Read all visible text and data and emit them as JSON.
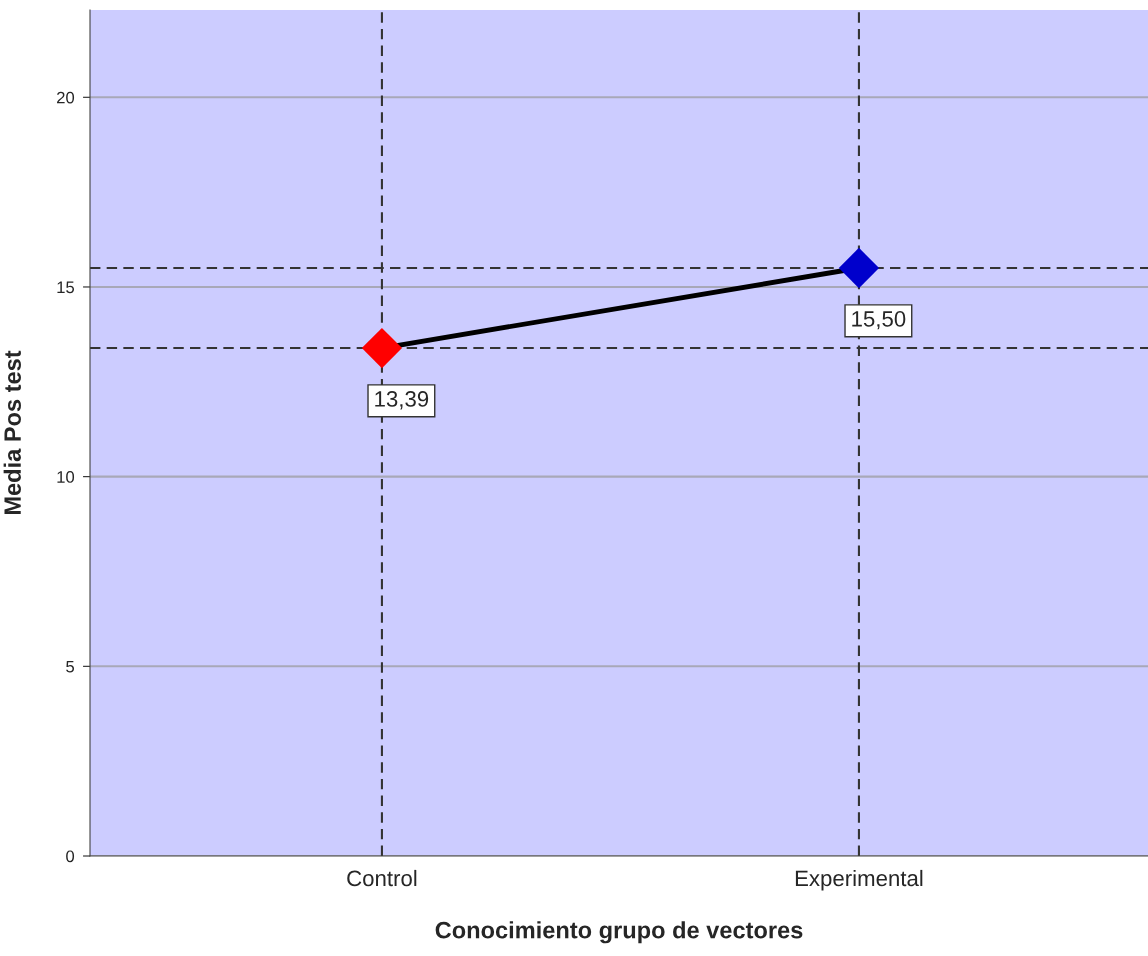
{
  "chart_data": {
    "type": "line",
    "xlabel": "Conocimiento grupo de vectores",
    "ylabel": "Media Pos test",
    "categories": [
      "Control",
      "Experimental"
    ],
    "series": [
      {
        "color": "#000000",
        "colors": [
          "#ff0000",
          "#0000cc"
        ],
        "values": [
          13.39,
          15.5
        ],
        "value_labels": [
          "13,39",
          "15,50"
        ]
      }
    ],
    "ylim": [
      0,
      22.3
    ],
    "yticks": [
      0,
      5,
      10,
      15,
      20
    ],
    "grid": "y",
    "marker": "diamond",
    "line_style": "solid",
    "legend": false,
    "ref_lines": [
      {
        "axis": "x",
        "value": "Control",
        "line_style": "dashed",
        "color": "#333333"
      },
      {
        "axis": "x",
        "value": "Experimental",
        "line_style": "dashed",
        "color": "#333333"
      },
      {
        "axis": "y",
        "value": 13.39,
        "line_style": "dashed",
        "color": "#333333"
      },
      {
        "axis": "y",
        "value": 15.5,
        "line_style": "dashed",
        "color": "#333333"
      }
    ]
  }
}
